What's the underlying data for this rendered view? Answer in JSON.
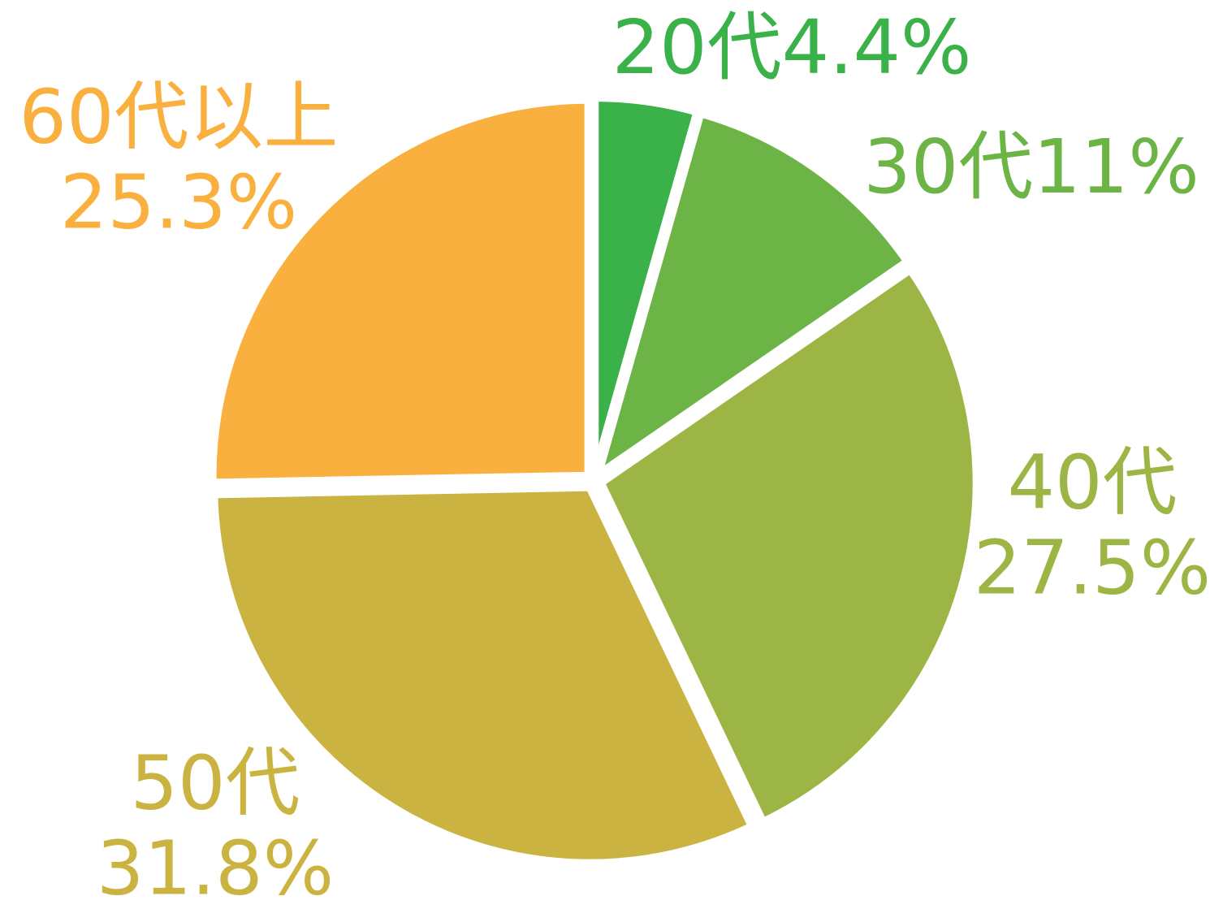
{
  "chart_data": {
    "type": "pie",
    "categories": [
      "20代",
      "30代",
      "40代",
      "50代",
      "60代以上"
    ],
    "values": [
      4.4,
      11,
      27.5,
      31.8,
      25.3
    ],
    "value_labels": [
      "4.4%",
      "11%",
      "27.5%",
      "31.8%",
      "25.3%"
    ],
    "colors": [
      "#3bb149",
      "#6cb446",
      "#9cb544",
      "#cab341",
      "#f9b03e"
    ]
  }
}
